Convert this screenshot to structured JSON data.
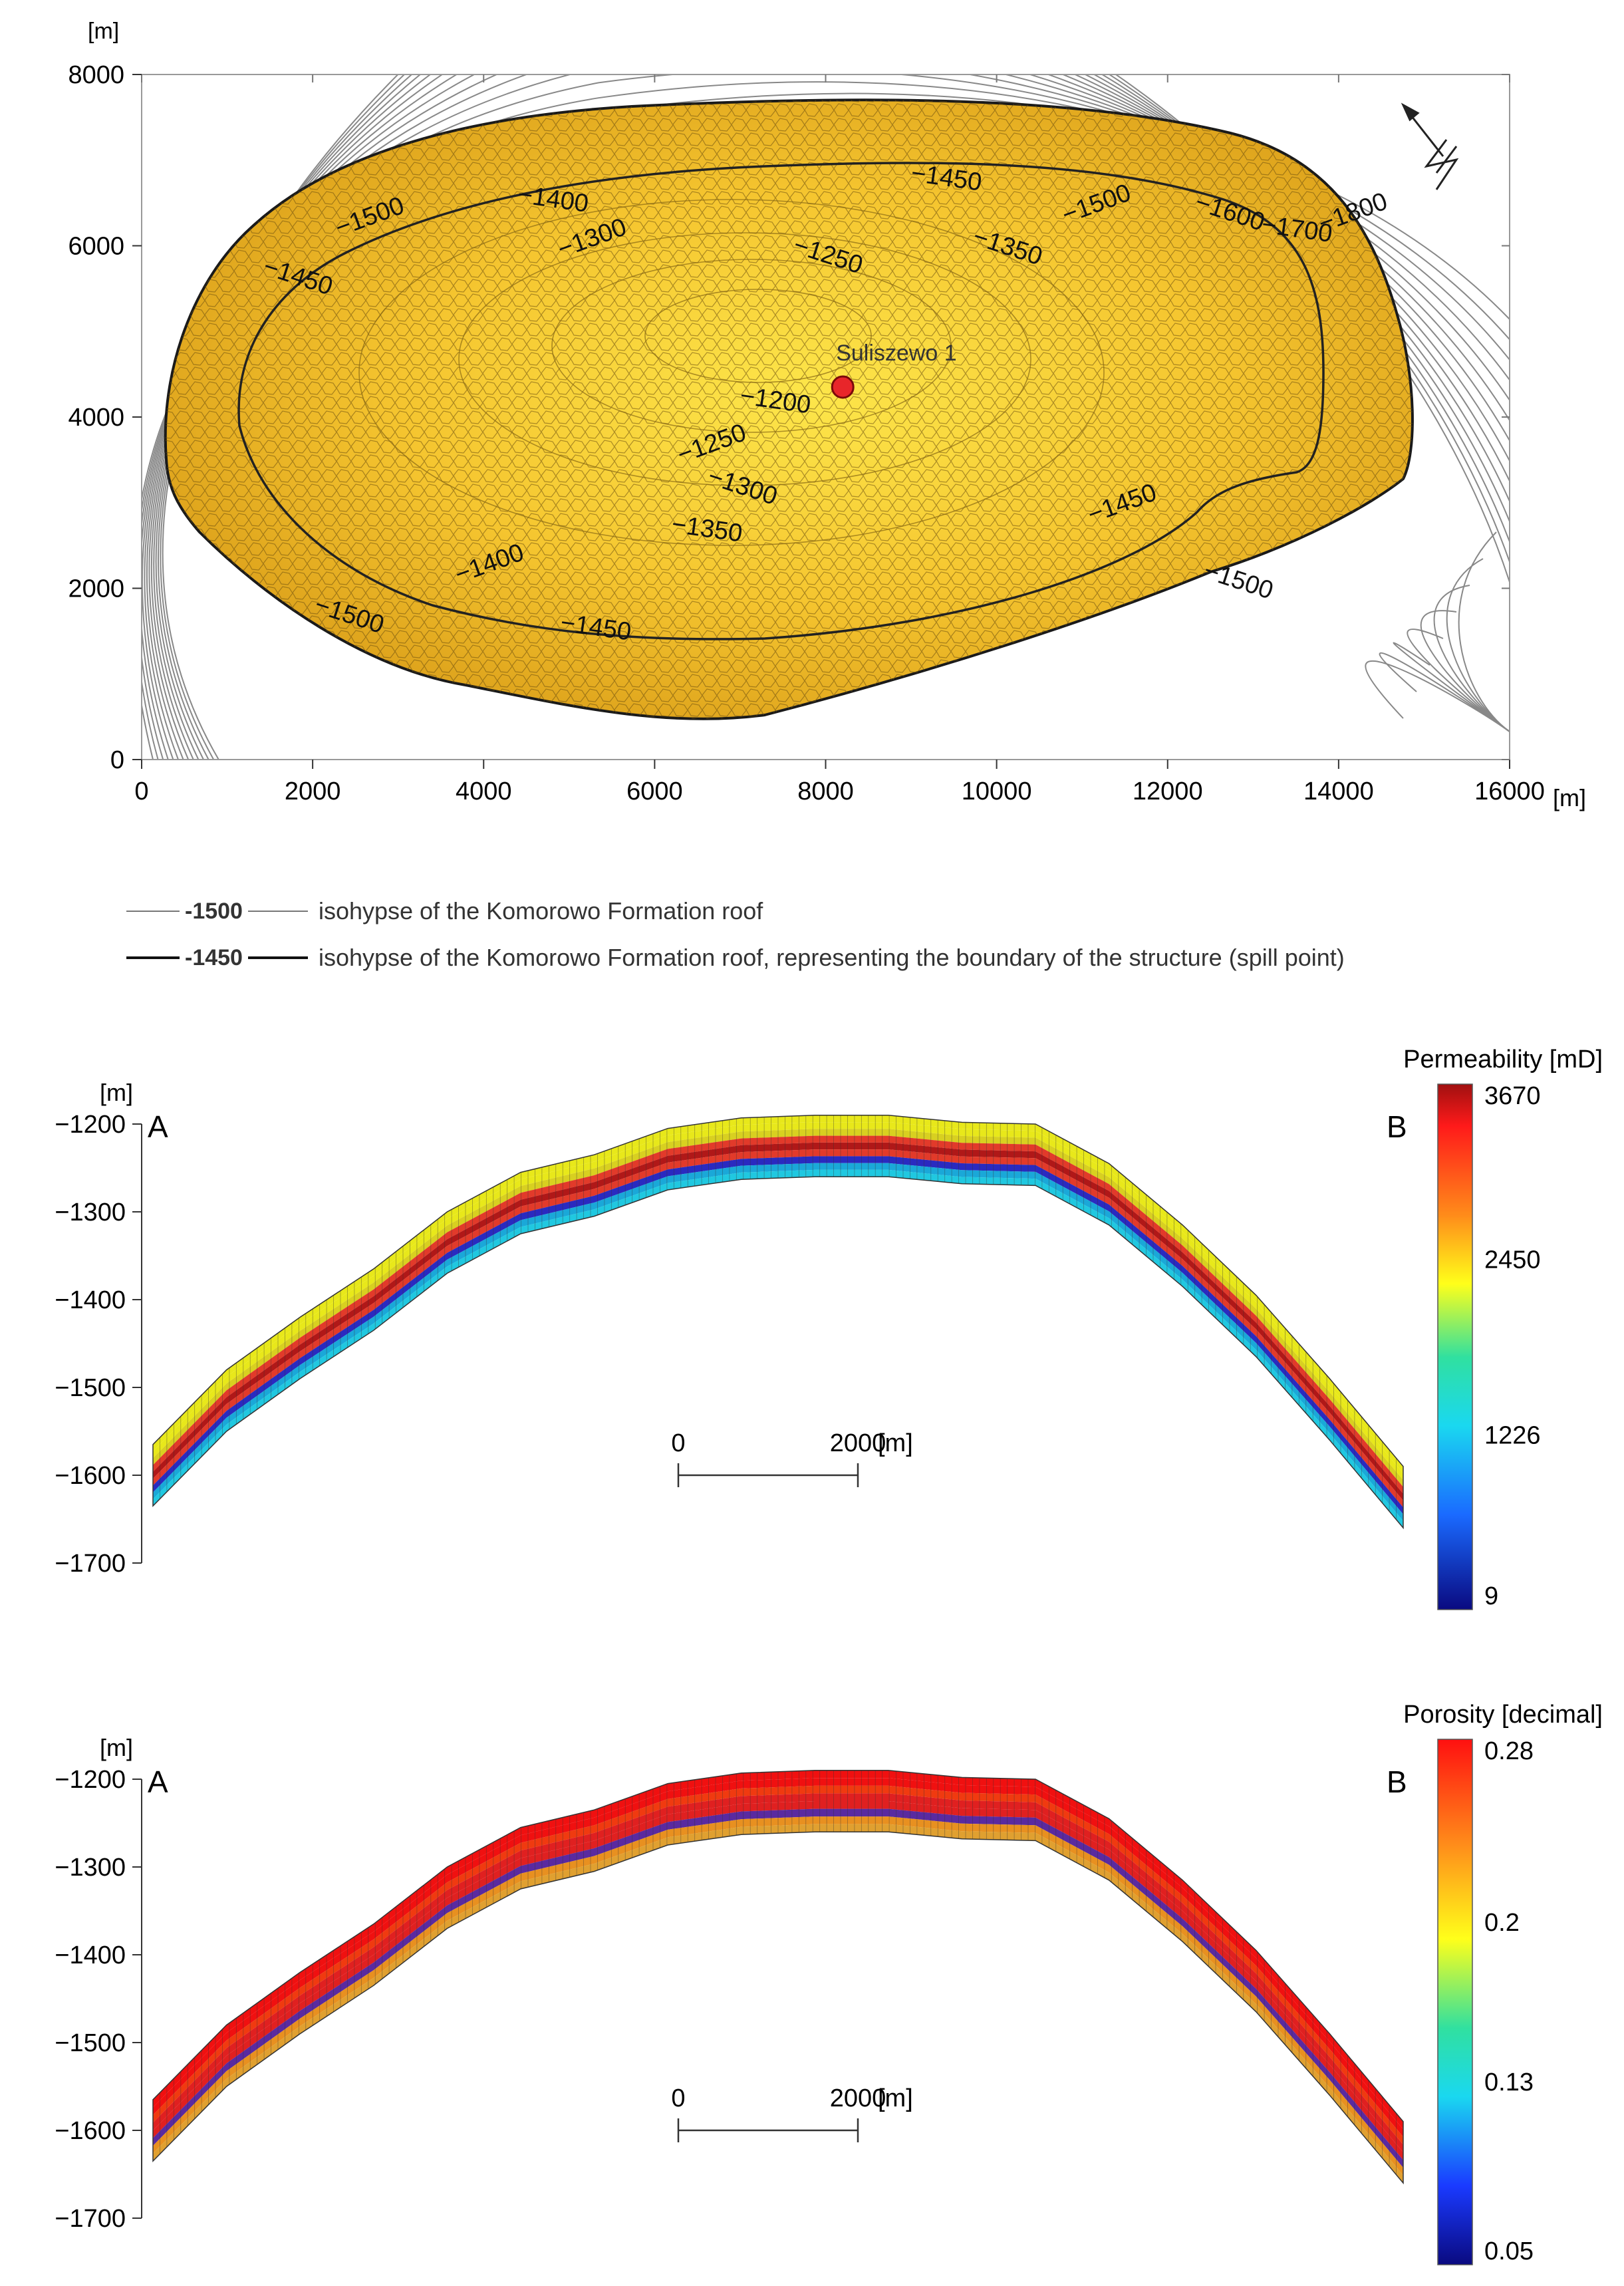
{
  "chart_data": [
    {
      "type": "contour-map",
      "title": "",
      "xlabel": "[m]",
      "ylabel": "[m]",
      "xlim": [
        0,
        16000
      ],
      "ylim": [
        0,
        8000
      ],
      "x_ticks": [
        "0",
        "2000",
        "4000",
        "6000",
        "8000",
        "10000",
        "12000",
        "14000",
        "16000"
      ],
      "y_ticks": [
        "0",
        "2000",
        "4000",
        "6000",
        "8000"
      ],
      "well": {
        "name": "Suliszewo 1",
        "x": 8200,
        "y": 4350
      },
      "contour_labels": [
        {
          "text": "-1500",
          "x": 2700,
          "y": 6250
        },
        {
          "text": "-1450",
          "x": 1800,
          "y": 5550
        },
        {
          "text": "-1400",
          "x": 4800,
          "y": 6450
        },
        {
          "text": "-1300",
          "x": 5300,
          "y": 6000
        },
        {
          "text": "-1250",
          "x": 8000,
          "y": 5800
        },
        {
          "text": "-1450",
          "x": 9400,
          "y": 6700
        },
        {
          "text": "-1500",
          "x": 11200,
          "y": 6400
        },
        {
          "text": "-1600",
          "x": 12700,
          "y": 6300
        },
        {
          "text": "-1700",
          "x": 13500,
          "y": 6100
        },
        {
          "text": "-1800",
          "x": 14200,
          "y": 6300
        },
        {
          "text": "-1350",
          "x": 10100,
          "y": 5900
        },
        {
          "text": "-1200",
          "x": 7400,
          "y": 4100
        },
        {
          "text": "-1250",
          "x": 6700,
          "y": 3600
        },
        {
          "text": "-1300",
          "x": 7000,
          "y": 3100
        },
        {
          "text": "-1350",
          "x": 6600,
          "y": 2600
        },
        {
          "text": "-1400",
          "x": 4100,
          "y": 2200
        },
        {
          "text": "-1500",
          "x": 2400,
          "y": 1600
        },
        {
          "text": "-1450",
          "x": 5300,
          "y": 1450
        },
        {
          "text": "-1450",
          "x": 11500,
          "y": 2900
        },
        {
          "text": "-1500",
          "x": 12800,
          "y": 2000
        }
      ],
      "north_arrow": "north-arrow"
    },
    {
      "type": "cross-section",
      "property": "Permeability [mD]",
      "ylabel": "[m]",
      "ylim": [
        -1700,
        -1200
      ],
      "y_ticks": [
        "-1200",
        "-1300",
        "-1400",
        "-1500",
        "-1600",
        "-1700"
      ],
      "end_labels": {
        "left": "A",
        "right": "B"
      },
      "scale_bar": {
        "start": "0",
        "end": "2000",
        "unit": "[m]"
      },
      "colorbar": {
        "title": "Permeability [mD]",
        "ticks": [
          "3670",
          "2450",
          "1226",
          "9"
        ],
        "min": 9,
        "max": 3670
      },
      "top_surface_depths": [
        -1565,
        -1480,
        -1420,
        -1365,
        -1300,
        -1255,
        -1235,
        -1205,
        -1193,
        -1190,
        -1190,
        -1198,
        -1200,
        -1245,
        -1315,
        -1395,
        -1490,
        -1590
      ]
    },
    {
      "type": "cross-section",
      "property": "Porosity [decimal]",
      "ylabel": "[m]",
      "ylim": [
        -1700,
        -1200
      ],
      "y_ticks": [
        "-1200",
        "-1300",
        "-1400",
        "-1500",
        "-1600",
        "-1700"
      ],
      "end_labels": {
        "left": "A",
        "right": "B"
      },
      "scale_bar": {
        "start": "0",
        "end": "2000",
        "unit": "[m]"
      },
      "colorbar": {
        "title": "Porosity [decimal]",
        "ticks": [
          "0.28",
          "0.2",
          "0.13",
          "0.05"
        ],
        "min": 0.05,
        "max": 0.28
      },
      "top_surface_depths": [
        -1565,
        -1480,
        -1420,
        -1365,
        -1300,
        -1255,
        -1235,
        -1205,
        -1193,
        -1190,
        -1190,
        -1198,
        -1200,
        -1245,
        -1315,
        -1395,
        -1490,
        -1590
      ]
    }
  ],
  "legend": {
    "thin_value": "-1500",
    "thin_text": "isohypse of the Komorowo Formation roof",
    "thick_value": "-1450",
    "thick_text": "isohypse of the Komorowo Formation roof, representing the boundary of the structure (spill point)"
  },
  "colors": {
    "structure_fill": "#f2c12e",
    "well_marker": "#e8262a"
  }
}
